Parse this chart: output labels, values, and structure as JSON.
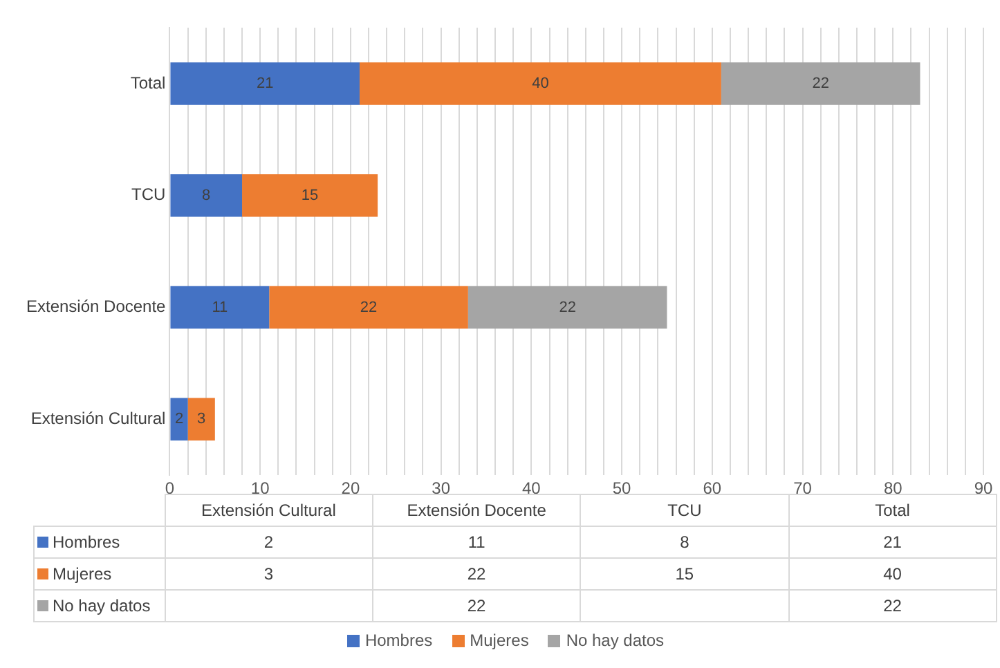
{
  "chart_data": {
    "type": "bar",
    "orientation": "horizontal",
    "stacked": true,
    "categories": [
      "Total",
      "TCU",
      "Extensión Docente",
      "Extensión Cultural"
    ],
    "series": [
      {
        "name": "Hombres",
        "color": "#4472c4",
        "values": [
          21,
          8,
          11,
          2
        ],
        "value_labels": [
          "21",
          "8",
          "11",
          "2"
        ]
      },
      {
        "name": "Mujeres",
        "color": "#ed7d31",
        "values": [
          40,
          15,
          22,
          3
        ],
        "value_labels": [
          "40",
          "15",
          "22",
          "3"
        ]
      },
      {
        "name": "No hay datos",
        "color": "#a5a5a5",
        "values": [
          22,
          null,
          22,
          null
        ],
        "value_labels": [
          "22",
          null,
          "22",
          null
        ]
      }
    ],
    "xlim": [
      0,
      90
    ],
    "xticks": [
      0,
      {
        "value": 2,
        "label": null
      },
      {
        "value": 4,
        "label": null
      },
      {
        "value": 6,
        "label": null
      },
      {
        "value": 8,
        "label": null
      },
      10,
      {
        "value": 12,
        "label": null
      },
      {
        "value": 14,
        "label": null
      },
      {
        "value": 16,
        "label": null
      },
      {
        "value": 18,
        "label": null
      },
      20,
      {
        "value": 22,
        "label": null
      },
      {
        "value": 24,
        "label": null
      },
      {
        "value": 26,
        "label": null
      },
      {
        "value": 28,
        "label": null
      },
      30,
      {
        "value": 32,
        "label": null
      },
      {
        "value": 34,
        "label": null
      },
      {
        "value": 36,
        "label": null
      },
      {
        "value": 38,
        "label": null
      },
      40,
      {
        "value": 42,
        "label": null
      },
      {
        "value": 44,
        "label": null
      },
      {
        "value": 46,
        "label": null
      },
      {
        "value": 48,
        "label": null
      },
      50,
      {
        "value": 52,
        "label": null
      },
      {
        "value": 54,
        "label": null
      },
      {
        "value": 56,
        "label": null
      },
      {
        "value": 58,
        "label": null
      },
      60,
      {
        "value": 62,
        "label": null
      },
      {
        "value": 64,
        "label": null
      },
      {
        "value": 66,
        "label": null
      },
      {
        "value": 68,
        "label": null
      },
      70,
      {
        "value": 72,
        "label": null
      },
      {
        "value": 74,
        "label": null
      },
      {
        "value": 76,
        "label": null
      },
      {
        "value": 78,
        "label": null
      },
      80,
      {
        "value": 82,
        "label": null
      },
      {
        "value": 84,
        "label": null
      },
      {
        "value": 86,
        "label": null
      },
      {
        "value": 88,
        "label": null
      },
      90
    ],
    "grid": "x",
    "legend": "bottom"
  }
}
